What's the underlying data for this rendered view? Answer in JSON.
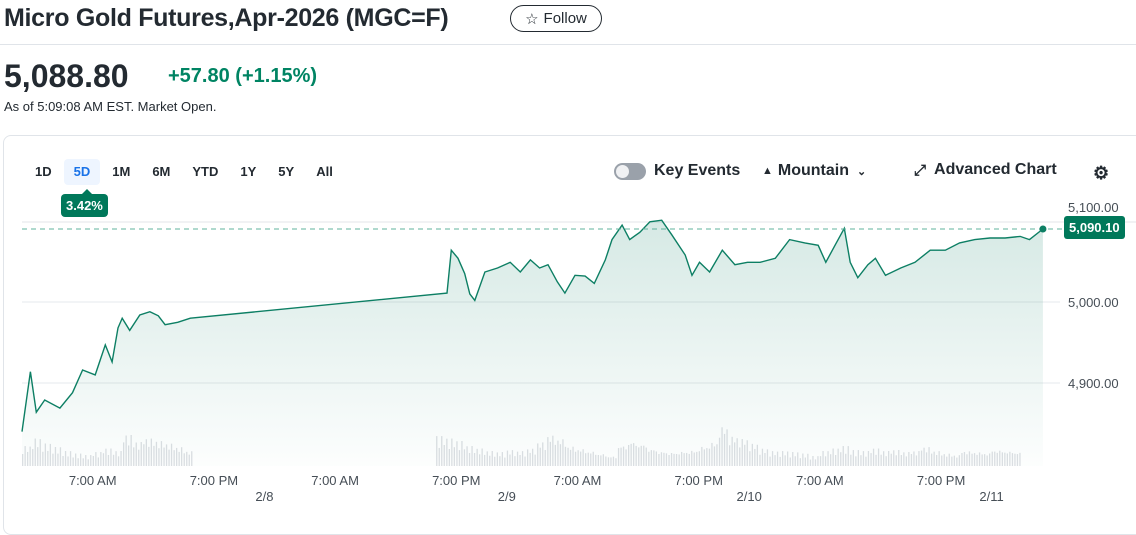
{
  "header": {
    "title": "Micro Gold Futures,Apr-2026 (MGC=F)",
    "follow_label": "Follow"
  },
  "quote": {
    "price": "5,088.80",
    "change": "+57.80",
    "change_pct": "(+1.15%)",
    "as_of": "As of 5:09:08 AM EST. Market Open."
  },
  "ranges": [
    {
      "label": "1D"
    },
    {
      "label": "5D",
      "active": true
    },
    {
      "label": "1M"
    },
    {
      "label": "6M"
    },
    {
      "label": "YTD"
    },
    {
      "label": "1Y"
    },
    {
      "label": "5Y"
    },
    {
      "label": "All"
    }
  ],
  "range_change": "3.42%",
  "toolbar": {
    "key_events": "Key Events",
    "key_events_on": false,
    "chart_type": "Mountain",
    "advanced": "Advanced Chart"
  },
  "colors": {
    "line": "#0d7f64",
    "accent": "#00785a",
    "up": "#008463"
  },
  "chart_data": {
    "type": "area",
    "current_label": "5,090.10",
    "y_ticks": [
      "5,100.00",
      "5,000.00",
      "4,900.00"
    ],
    "y_tick_values": [
      5100,
      5000,
      4900
    ],
    "ylim": [
      4790,
      5125
    ],
    "x_ticks": [
      {
        "label": "7:00 AM",
        "time": "2/7 07:00"
      },
      {
        "label": "7:00 PM",
        "time": "2/7 19:00"
      },
      {
        "label": "2/8",
        "time": "2/8 00:00",
        "date": true
      },
      {
        "label": "7:00 AM",
        "time": "2/8 07:00"
      },
      {
        "label": "7:00 PM",
        "time": "2/8 19:00"
      },
      {
        "label": "2/9",
        "time": "2/9 00:00",
        "date": true
      },
      {
        "label": "7:00 AM",
        "time": "2/9 07:00"
      },
      {
        "label": "7:00 PM",
        "time": "2/9 19:00"
      },
      {
        "label": "2/10",
        "time": "2/10 00:00",
        "date": true
      },
      {
        "label": "7:00 AM",
        "time": "2/10 07:00"
      },
      {
        "label": "7:00 PM",
        "time": "2/10 19:00"
      },
      {
        "label": "2/11",
        "time": "2/11 00:00",
        "date": true
      }
    ],
    "xlim": [
      "2/7 00:00",
      "2/11 05:05"
    ],
    "points": [
      [
        "2/7 00:00",
        4840
      ],
      [
        "2/7 00:50",
        4914
      ],
      [
        "2/7 01:25",
        4864
      ],
      [
        "2/7 02:15",
        4879
      ],
      [
        "2/7 03:45",
        4869
      ],
      [
        "2/7 05:00",
        4888
      ],
      [
        "2/7 06:00",
        4916
      ],
      [
        "2/7 07:15",
        4910
      ],
      [
        "2/7 08:15",
        4947
      ],
      [
        "2/7 08:55",
        4926
      ],
      [
        "2/7 09:30",
        4968
      ],
      [
        "2/7 09:55",
        4980
      ],
      [
        "2/7 10:40",
        4965
      ],
      [
        "2/7 11:40",
        4984
      ],
      [
        "2/7 12:40",
        4988
      ],
      [
        "2/7 13:30",
        4983
      ],
      [
        "2/7 14:10",
        4972
      ],
      [
        "2/7 15:25",
        4975
      ],
      [
        "2/7 16:40",
        4980
      ],
      [
        "2/8 18:05",
        5011
      ],
      [
        "2/8 18:30",
        5064
      ],
      [
        "2/8 19:10",
        5054
      ],
      [
        "2/8 19:50",
        5035
      ],
      [
        "2/8 20:20",
        5010
      ],
      [
        "2/8 20:50",
        5002
      ],
      [
        "2/8 21:50",
        5037
      ],
      [
        "2/8 23:05",
        5042
      ],
      [
        "2/9 00:20",
        5049
      ],
      [
        "2/9 01:20",
        5037
      ],
      [
        "2/9 02:20",
        5052
      ],
      [
        "2/9 03:15",
        5042
      ],
      [
        "2/9 04:05",
        5046
      ],
      [
        "2/9 05:00",
        5025
      ],
      [
        "2/9 05:45",
        5011
      ],
      [
        "2/9 06:45",
        5033
      ],
      [
        "2/9 07:45",
        5032
      ],
      [
        "2/9 08:40",
        5023
      ],
      [
        "2/9 09:45",
        5052
      ],
      [
        "2/9 10:25",
        5077
      ],
      [
        "2/9 11:25",
        5095
      ],
      [
        "2/9 12:10",
        5077
      ],
      [
        "2/9 13:10",
        5086
      ],
      [
        "2/9 14:10",
        5099
      ],
      [
        "2/9 15:20",
        5101
      ],
      [
        "2/9 16:20",
        5083
      ],
      [
        "2/9 17:40",
        5058
      ],
      [
        "2/9 18:20",
        5033
      ],
      [
        "2/9 19:05",
        5049
      ],
      [
        "2/9 20:05",
        5037
      ],
      [
        "2/9 21:20",
        5064
      ],
      [
        "2/9 22:35",
        5046
      ],
      [
        "2/9 23:50",
        5049
      ],
      [
        "2/10 01:05",
        5049
      ],
      [
        "2/10 02:35",
        5054
      ],
      [
        "2/10 04:00",
        5077
      ],
      [
        "2/10 05:30",
        5073
      ],
      [
        "2/10 06:50",
        5070
      ],
      [
        "2/10 07:35",
        5049
      ],
      [
        "2/10 08:30",
        5070
      ],
      [
        "2/10 09:25",
        5091
      ],
      [
        "2/10 10:00",
        5049
      ],
      [
        "2/10 10:45",
        5030
      ],
      [
        "2/10 11:45",
        5046
      ],
      [
        "2/10 12:30",
        5054
      ],
      [
        "2/10 13:30",
        5033
      ],
      [
        "2/10 15:00",
        5042
      ],
      [
        "2/10 16:25",
        5049
      ],
      [
        "2/10 17:55",
        5064
      ],
      [
        "2/10 19:25",
        5064
      ],
      [
        "2/10 20:50",
        5073
      ],
      [
        "2/10 22:20",
        5077
      ],
      [
        "2/10 23:50",
        5079
      ],
      [
        "2/11 01:20",
        5079
      ],
      [
        "2/11 02:50",
        5081
      ],
      [
        "2/11 03:45",
        5077
      ],
      [
        "2/11 05:05",
        5090.1
      ]
    ],
    "volume": [
      40,
      55,
      45,
      38,
      30,
      25,
      22,
      28,
      35,
      30,
      62,
      48,
      55,
      50,
      45,
      38,
      30,
      null,
      null,
      null,
      null,
      null,
      null,
      null,
      null,
      null,
      null,
      null,
      null,
      null,
      null,
      null,
      null,
      null,
      null,
      null,
      null,
      null,
      null,
      null,
      null,
      60,
      55,
      50,
      40,
      35,
      30,
      28,
      32,
      30,
      35,
      48,
      62,
      55,
      40,
      35,
      30,
      25,
      20,
      42,
      50,
      45,
      35,
      30,
      28,
      30,
      32,
      40,
      48,
      80,
      60,
      55,
      45,
      35,
      30,
      30,
      28,
      25,
      20,
      30,
      35,
      40,
      32,
      30,
      35,
      30,
      32,
      28,
      30,
      38,
      30,
      25,
      22,
      30,
      28,
      26,
      32,
      30,
      28
    ]
  }
}
